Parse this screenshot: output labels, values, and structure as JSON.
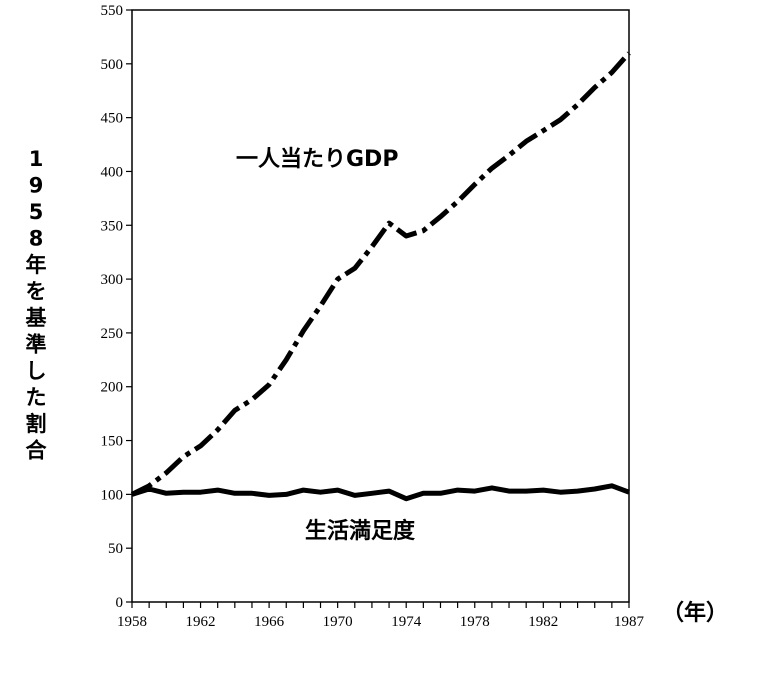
{
  "chart_data": {
    "type": "line",
    "title": "",
    "ylabel": "1958年を基準した割合",
    "xlabel": "（年）",
    "xlim": [
      1958,
      1987
    ],
    "ylim": [
      0,
      550
    ],
    "x_ticks": [
      "1958",
      "1962",
      "1966",
      "1970",
      "1974",
      "1978",
      "1982",
      "1987"
    ],
    "y_ticks": [
      "0",
      "50",
      "100",
      "150",
      "200",
      "250",
      "300",
      "350",
      "400",
      "450",
      "500",
      "550"
    ],
    "grid": false,
    "series": [
      {
        "name": "一人当たりGDP",
        "style": "dash-dot",
        "x": [
          1958,
          1959,
          1960,
          1961,
          1962,
          1963,
          1964,
          1965,
          1966,
          1967,
          1968,
          1969,
          1970,
          1971,
          1972,
          1973,
          1974,
          1975,
          1976,
          1977,
          1978,
          1979,
          1980,
          1981,
          1982,
          1983,
          1984,
          1985,
          1986,
          1987
        ],
        "values": [
          100,
          108,
          120,
          135,
          145,
          160,
          178,
          188,
          202,
          225,
          252,
          275,
          300,
          310,
          330,
          352,
          340,
          345,
          358,
          372,
          388,
          403,
          415,
          428,
          438,
          448,
          462,
          478,
          492,
          510
        ]
      },
      {
        "name": "生活満足度",
        "style": "solid",
        "x": [
          1958,
          1959,
          1960,
          1961,
          1962,
          1963,
          1964,
          1965,
          1966,
          1967,
          1968,
          1969,
          1970,
          1971,
          1972,
          1973,
          1974,
          1975,
          1976,
          1977,
          1978,
          1979,
          1980,
          1981,
          1982,
          1983,
          1984,
          1985,
          1986,
          1987
        ],
        "values": [
          100,
          105,
          101,
          102,
          102,
          104,
          101,
          101,
          99,
          100,
          104,
          102,
          104,
          99,
          101,
          103,
          96,
          101,
          101,
          104,
          103,
          106,
          103,
          103,
          104,
          102,
          103,
          105,
          108,
          102
        ]
      }
    ]
  }
}
